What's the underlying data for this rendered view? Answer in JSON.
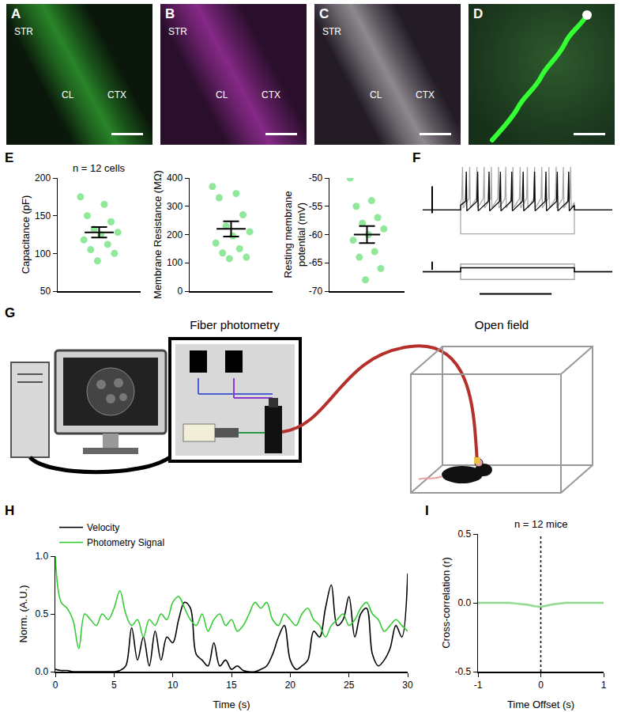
{
  "panel_labels": [
    "A",
    "B",
    "C",
    "D",
    "E",
    "F",
    "G",
    "H",
    "I"
  ],
  "images": [
    {
      "labels": [
        "STR",
        "CL",
        "CTX"
      ],
      "color": "#3ccf3c"
    },
    {
      "labels": [
        "STR",
        "CL",
        "CTX"
      ],
      "color": "#c23ac2"
    },
    {
      "labels": [
        "STR",
        "CL",
        "CTX"
      ],
      "color": "#d6d0d6"
    },
    {
      "labels": [],
      "color": "#33ff33"
    }
  ],
  "schematic": {
    "labels": [
      "Fiber photometry",
      "Open field"
    ]
  },
  "chart_data": [
    {
      "type": "scatter",
      "title": "n = 12 cells",
      "ylabel": "Capacitance (pF)",
      "values": [
        175,
        165,
        150,
        142,
        132,
        128,
        125,
        118,
        112,
        105,
        100,
        90
      ],
      "mean": 128,
      "sem": 7,
      "color": "#90e89a",
      "ylim": [
        50,
        200
      ],
      "yticks": [
        50,
        100,
        150,
        200
      ],
      "tick_labels": "y"
    },
    {
      "type": "scatter",
      "ylabel": "Membrane Resistance (MΩ)",
      "values": [
        370,
        345,
        330,
        270,
        230,
        210,
        195,
        170,
        150,
        135,
        120,
        115
      ],
      "mean": 220,
      "sem": 27,
      "color": "#90e89a",
      "ylim": [
        0,
        400
      ],
      "yticks": [
        0,
        100,
        200,
        300,
        400
      ],
      "tick_labels": "y"
    },
    {
      "type": "scatter",
      "ylabel": [
        "Resting membrane",
        "potential (mV)"
      ],
      "values": [
        -50,
        -54,
        -55,
        -57,
        -58,
        -59,
        -60,
        -61,
        -63,
        -64,
        -66,
        -68
      ],
      "mean": -60,
      "sem": 1.5,
      "color": "#90e89a",
      "ylim": [
        -70,
        -50
      ],
      "yticks": [
        -70,
        -65,
        -60,
        -55,
        -50
      ],
      "tick_labels": "y"
    },
    {
      "type": "line",
      "tick_labels": false,
      "xlim": [
        0,
        1000
      ],
      "ylim": [
        -40,
        50
      ],
      "y2lim": [
        -3,
        4
      ],
      "series": [
        {
          "color": "#aaaaaa",
          "baseline": 0,
          "plateau": 8,
          "peak": 45,
          "onset": 200,
          "offset": 800,
          "spike_times": [
            210,
            248,
            286,
            324,
            362,
            400,
            438,
            476,
            514,
            552,
            590,
            628,
            666,
            704,
            742,
            780
          ]
        },
        {
          "color": "#aaaaaa",
          "baseline": 0,
          "plateau": -25,
          "onset": 200,
          "offset": 800,
          "spike_times": []
        },
        {
          "color": "#000000",
          "baseline": 0,
          "plateau": 5,
          "peak": 40,
          "onset": 200,
          "offset": 800,
          "spike_times": [
            230,
            290,
            350,
            410,
            470,
            530,
            590,
            650,
            710,
            770
          ]
        },
        {
          "color": "#aaaaaa",
          "axis": "y2",
          "x": [
            0,
            200,
            200,
            800,
            800,
            1000
          ],
          "values": [
            0,
            0,
            2,
            2,
            0,
            0
          ]
        },
        {
          "color": "#aaaaaa",
          "axis": "y2",
          "x": [
            0,
            200,
            200,
            800,
            800,
            1000
          ],
          "values": [
            0,
            0,
            -2,
            -2,
            0,
            0
          ]
        },
        {
          "color": "#000000",
          "axis": "y2",
          "x": [
            0,
            200,
            200,
            800,
            800,
            1000
          ],
          "values": [
            0,
            0,
            1,
            1,
            0,
            0
          ]
        }
      ]
    },
    {
      "type": "line",
      "ylabel": "Norm. (A.U.)",
      "xlabel": "Time (s)",
      "x": [
        0,
        0.5,
        1,
        1.5,
        2,
        2.5,
        3,
        3.5,
        4,
        4.5,
        5,
        5.5,
        6,
        6.5,
        7,
        7.5,
        8,
        8.5,
        9,
        9.5,
        10,
        10.5,
        11,
        11.5,
        12,
        12.5,
        13,
        13.5,
        14,
        14.5,
        15,
        15.5,
        16,
        16.5,
        17,
        17.5,
        18,
        18.5,
        19,
        19.5,
        20,
        20.5,
        21,
        21.5,
        22,
        22.5,
        23,
        23.5,
        24,
        24.5,
        25,
        25.5,
        26,
        26.5,
        27,
        27.5,
        28,
        28.5,
        29,
        29.5,
        30
      ],
      "series": [
        {
          "name": "Velocity",
          "color": "#000000",
          "values": [
            0.02,
            0.01,
            0.01,
            0,
            0,
            0,
            0,
            0,
            0,
            0,
            0,
            0.01,
            0.05,
            0.38,
            0.1,
            0.3,
            0.05,
            0.35,
            0.1,
            0.3,
            0.25,
            0.45,
            0.6,
            0.55,
            0.15,
            0.1,
            0.05,
            0.25,
            0.05,
            0.1,
            0.02,
            0.05,
            0.01,
            0,
            0,
            0.02,
            0.05,
            0.15,
            0.3,
            0.4,
            0.1,
            0.02,
            0.05,
            0.1,
            0.35,
            0.3,
            0.55,
            0.75,
            0.4,
            0.45,
            0.65,
            0.3,
            0.5,
            0.55,
            0.15,
            0.05,
            0.1,
            0.2,
            0.4,
            0.3,
            0.85
          ]
        },
        {
          "name": "Photometry Signal",
          "color": "#33cc33",
          "values": [
            1.0,
            0.6,
            0.55,
            0.45,
            0.2,
            0.5,
            0.45,
            0.4,
            0.5,
            0.45,
            0.55,
            0.7,
            0.5,
            0.4,
            0.45,
            0.3,
            0.45,
            0.4,
            0.5,
            0.45,
            0.6,
            0.65,
            0.55,
            0.45,
            0.4,
            0.5,
            0.35,
            0.45,
            0.5,
            0.4,
            0.45,
            0.35,
            0.4,
            0.5,
            0.6,
            0.55,
            0.6,
            0.45,
            0.4,
            0.5,
            0.45,
            0.4,
            0.5,
            0.55,
            0.45,
            0.4,
            0.3,
            0.4,
            0.45,
            0.5,
            0.4,
            0.45,
            0.55,
            0.6,
            0.5,
            0.45,
            0.35,
            0.4,
            0.45,
            0.4,
            0.35
          ]
        }
      ],
      "xlim": [
        0,
        30
      ],
      "ylim": [
        0,
        1
      ],
      "xticks": [
        0,
        5,
        10,
        15,
        20,
        25,
        30
      ],
      "yticks": [
        {
          "value": 0,
          "label": "0.0"
        },
        0.5,
        {
          "value": 1,
          "label": "1.0"
        }
      ],
      "legend": "top left"
    },
    {
      "type": "line",
      "title": "n = 12 mice",
      "xlabel": "Time Offset (s)",
      "ylabel": "Cross-correlation (r)",
      "x": [
        -1,
        -0.9,
        -0.8,
        -0.7,
        -0.6,
        -0.5,
        -0.4,
        -0.3,
        -0.2,
        -0.1,
        0,
        0.1,
        0.2,
        0.3,
        0.4,
        0.5,
        0.6,
        0.7,
        0.8,
        0.9,
        1
      ],
      "series": [
        {
          "color": "#8fd88f",
          "values": [
            0,
            0,
            0,
            0,
            0,
            0,
            -0.005,
            -0.01,
            -0.015,
            -0.025,
            -0.03,
            -0.02,
            -0.01,
            -0.005,
            0,
            0,
            0,
            0,
            0,
            0,
            0
          ],
          "sem": [
            0.01,
            0.01,
            0.01,
            0.01,
            0.01,
            0.01,
            0.01,
            0.01,
            0.01,
            0.01,
            0.01,
            0.01,
            0.01,
            0.01,
            0.01,
            0.01,
            0.01,
            0.01,
            0.01,
            0.01,
            0.01
          ]
        }
      ],
      "xlim": [
        -1,
        1
      ],
      "ylim": [
        -0.5,
        0.5
      ],
      "xticks": [
        -1,
        0,
        1
      ],
      "yticks": [
        -0.5,
        {
          "value": 0,
          "label": "0.0"
        },
        0.5
      ],
      "vline": 0
    }
  ]
}
